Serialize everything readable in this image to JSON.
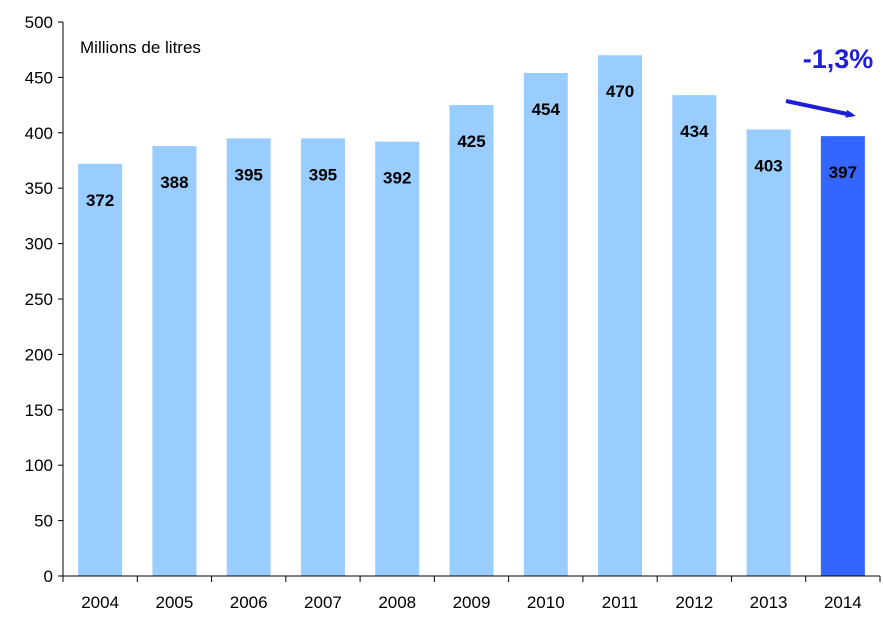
{
  "chart_data": {
    "type": "bar",
    "unit_label": "Millions de litres",
    "categories": [
      "2004",
      "2005",
      "2006",
      "2007",
      "2008",
      "2009",
      "2010",
      "2011",
      "2012",
      "2013",
      "2014"
    ],
    "values": [
      372,
      388,
      395,
      395,
      392,
      425,
      454,
      470,
      434,
      403,
      397
    ],
    "data_labels": [
      "372",
      "388",
      "395",
      "395",
      "392",
      "425",
      "454",
      "470",
      "434",
      "403",
      "397"
    ],
    "ylim": [
      0,
      500
    ],
    "yticks": [
      "0",
      "50",
      "100",
      "150",
      "200",
      "250",
      "300",
      "350",
      "400",
      "450",
      "500"
    ],
    "grid": false,
    "highlight_index": 10,
    "colors": {
      "bar": "#99ccff",
      "highlight": "#3366ff",
      "annotation": "#1f1fd6",
      "axis": "#000000"
    },
    "annotation": {
      "text": "-1,3%",
      "icon": "down-right-arrow-icon"
    }
  }
}
